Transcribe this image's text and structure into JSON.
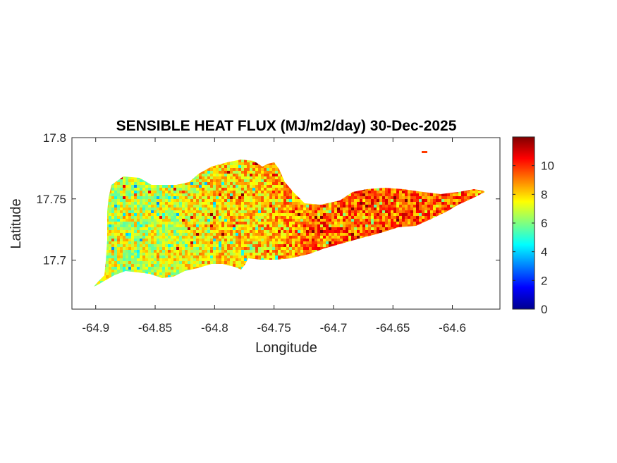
{
  "chart_data": {
    "type": "heatmap",
    "title": "SENSIBLE HEAT FLUX (MJ/m2/day) 30-Dec-2025",
    "xlabel": "Longitude",
    "ylabel": "Latitude",
    "xlim": [
      -64.92,
      -64.56
    ],
    "ylim": [
      17.66,
      17.8
    ],
    "x_ticks": [
      -64.9,
      -64.85,
      -64.8,
      -64.75,
      -64.7,
      -64.65,
      -64.6
    ],
    "x_tick_labels": [
      "-64.9",
      "-64.85",
      "-64.8",
      "-64.75",
      "-64.7",
      "-64.65",
      "-64.6"
    ],
    "y_ticks": [
      17.7,
      17.75,
      17.8
    ],
    "y_tick_labels": [
      "17.7",
      "17.75",
      "17.8"
    ],
    "colorbar": {
      "colormap": "jet",
      "limits": [
        0,
        12
      ],
      "ticks": [
        0,
        2,
        4,
        6,
        8,
        10
      ],
      "tick_labels": [
        "0",
        "2",
        "4",
        "6",
        "8",
        "10"
      ],
      "location": "right"
    },
    "grid": false,
    "field_summary": [
      {
        "region": "west",
        "lon_range": [
          -64.9,
          -64.82
        ],
        "typical_value": 7
      },
      {
        "region": "central",
        "lon_range": [
          -64.82,
          -64.74
        ],
        "typical_value": 8
      },
      {
        "region": "east",
        "lon_range": [
          -64.74,
          -64.57
        ],
        "typical_value": 9.5
      }
    ]
  }
}
